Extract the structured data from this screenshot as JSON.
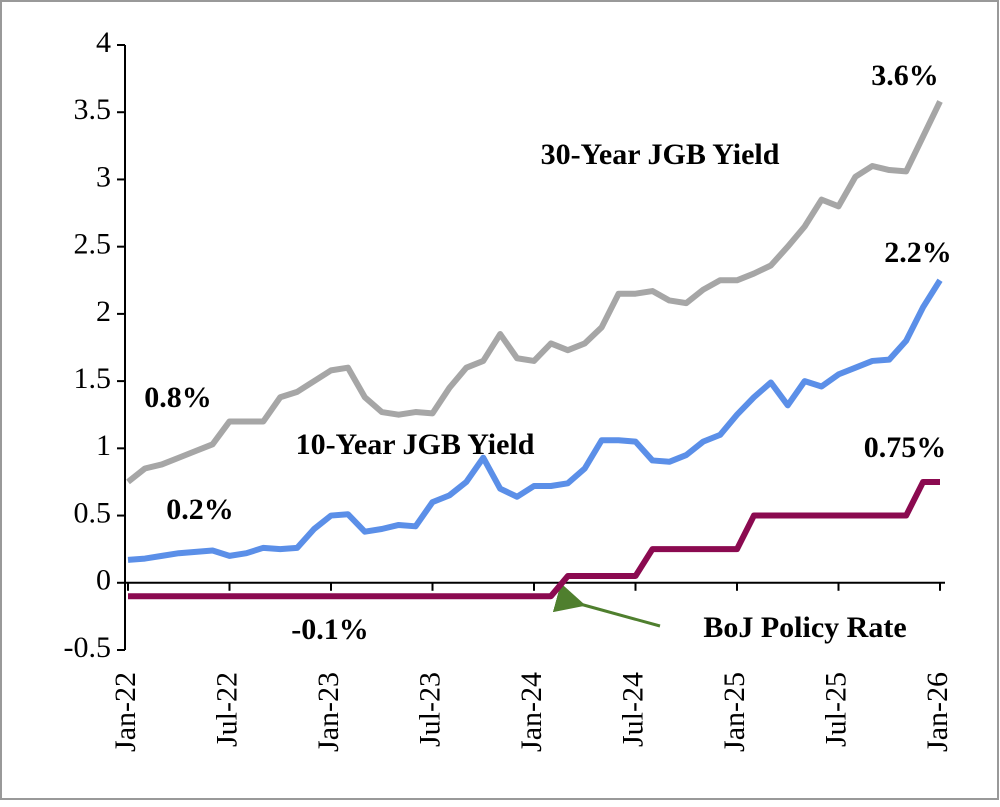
{
  "chart_data": {
    "type": "line",
    "categories": [
      "Jan-22",
      null,
      null,
      null,
      null,
      null,
      "Jul-22",
      null,
      null,
      null,
      null,
      null,
      "Jan-23",
      null,
      null,
      null,
      null,
      null,
      "Jul-23",
      null,
      null,
      null,
      null,
      null,
      "Jan-24",
      null,
      null,
      null,
      null,
      null,
      "Jul-24",
      null,
      null,
      null,
      null,
      null,
      "Jan-25",
      null,
      null,
      null,
      null,
      null,
      "Jul-25",
      null,
      null,
      null,
      null,
      null,
      "Jan-26"
    ],
    "series": [
      {
        "name": "30-Year JGB Yield",
        "color": "#a6a6a6",
        "values": [
          0.75,
          0.85,
          0.88,
          0.93,
          0.98,
          1.03,
          1.2,
          1.2,
          1.2,
          1.38,
          1.42,
          1.5,
          1.58,
          1.6,
          1.38,
          1.27,
          1.25,
          1.27,
          1.26,
          1.45,
          1.6,
          1.65,
          1.85,
          1.67,
          1.65,
          1.78,
          1.73,
          1.78,
          1.9,
          2.15,
          2.15,
          2.17,
          2.1,
          2.08,
          2.18,
          2.25,
          2.25,
          2.3,
          2.36,
          2.5,
          2.65,
          2.85,
          2.8,
          3.02,
          3.1,
          3.07,
          3.06,
          3.32,
          3.58
        ]
      },
      {
        "name": "10-Year JGB Yield",
        "color": "#5b8fe8",
        "values": [
          0.17,
          0.18,
          0.2,
          0.22,
          0.23,
          0.24,
          0.2,
          0.22,
          0.26,
          0.25,
          0.26,
          0.4,
          0.5,
          0.51,
          0.38,
          0.4,
          0.43,
          0.42,
          0.6,
          0.65,
          0.75,
          0.93,
          0.7,
          0.64,
          0.72,
          0.72,
          0.74,
          0.85,
          1.06,
          1.06,
          1.05,
          0.91,
          0.9,
          0.95,
          1.05,
          1.1,
          1.25,
          1.38,
          1.49,
          1.32,
          1.5,
          1.46,
          1.55,
          1.6,
          1.65,
          1.66,
          1.8,
          2.05,
          2.25
        ]
      },
      {
        "name": "BoJ Policy Rate",
        "color": "#8b0a50",
        "values": [
          -0.1,
          -0.1,
          -0.1,
          -0.1,
          -0.1,
          -0.1,
          -0.1,
          -0.1,
          -0.1,
          -0.1,
          -0.1,
          -0.1,
          -0.1,
          -0.1,
          -0.1,
          -0.1,
          -0.1,
          -0.1,
          -0.1,
          -0.1,
          -0.1,
          -0.1,
          -0.1,
          -0.1,
          -0.1,
          -0.1,
          0.05,
          0.05,
          0.05,
          0.05,
          0.05,
          0.25,
          0.25,
          0.25,
          0.25,
          0.25,
          0.25,
          0.5,
          0.5,
          0.5,
          0.5,
          0.5,
          0.5,
          0.5,
          0.5,
          0.5,
          0.5,
          0.75,
          0.75
        ]
      }
    ],
    "annotations": [
      "30-Year JGB Yield",
      "10-Year JGB Yield",
      "BoJ Policy Rate",
      "3.6%",
      "2.2%",
      "0.75%",
      "0.8%",
      "0.2%",
      "-0.1%"
    ],
    "ylim": [
      -0.5,
      4
    ],
    "yticks": [
      -0.5,
      0,
      0.5,
      1,
      1.5,
      2,
      2.5,
      3,
      3.5,
      4
    ]
  }
}
